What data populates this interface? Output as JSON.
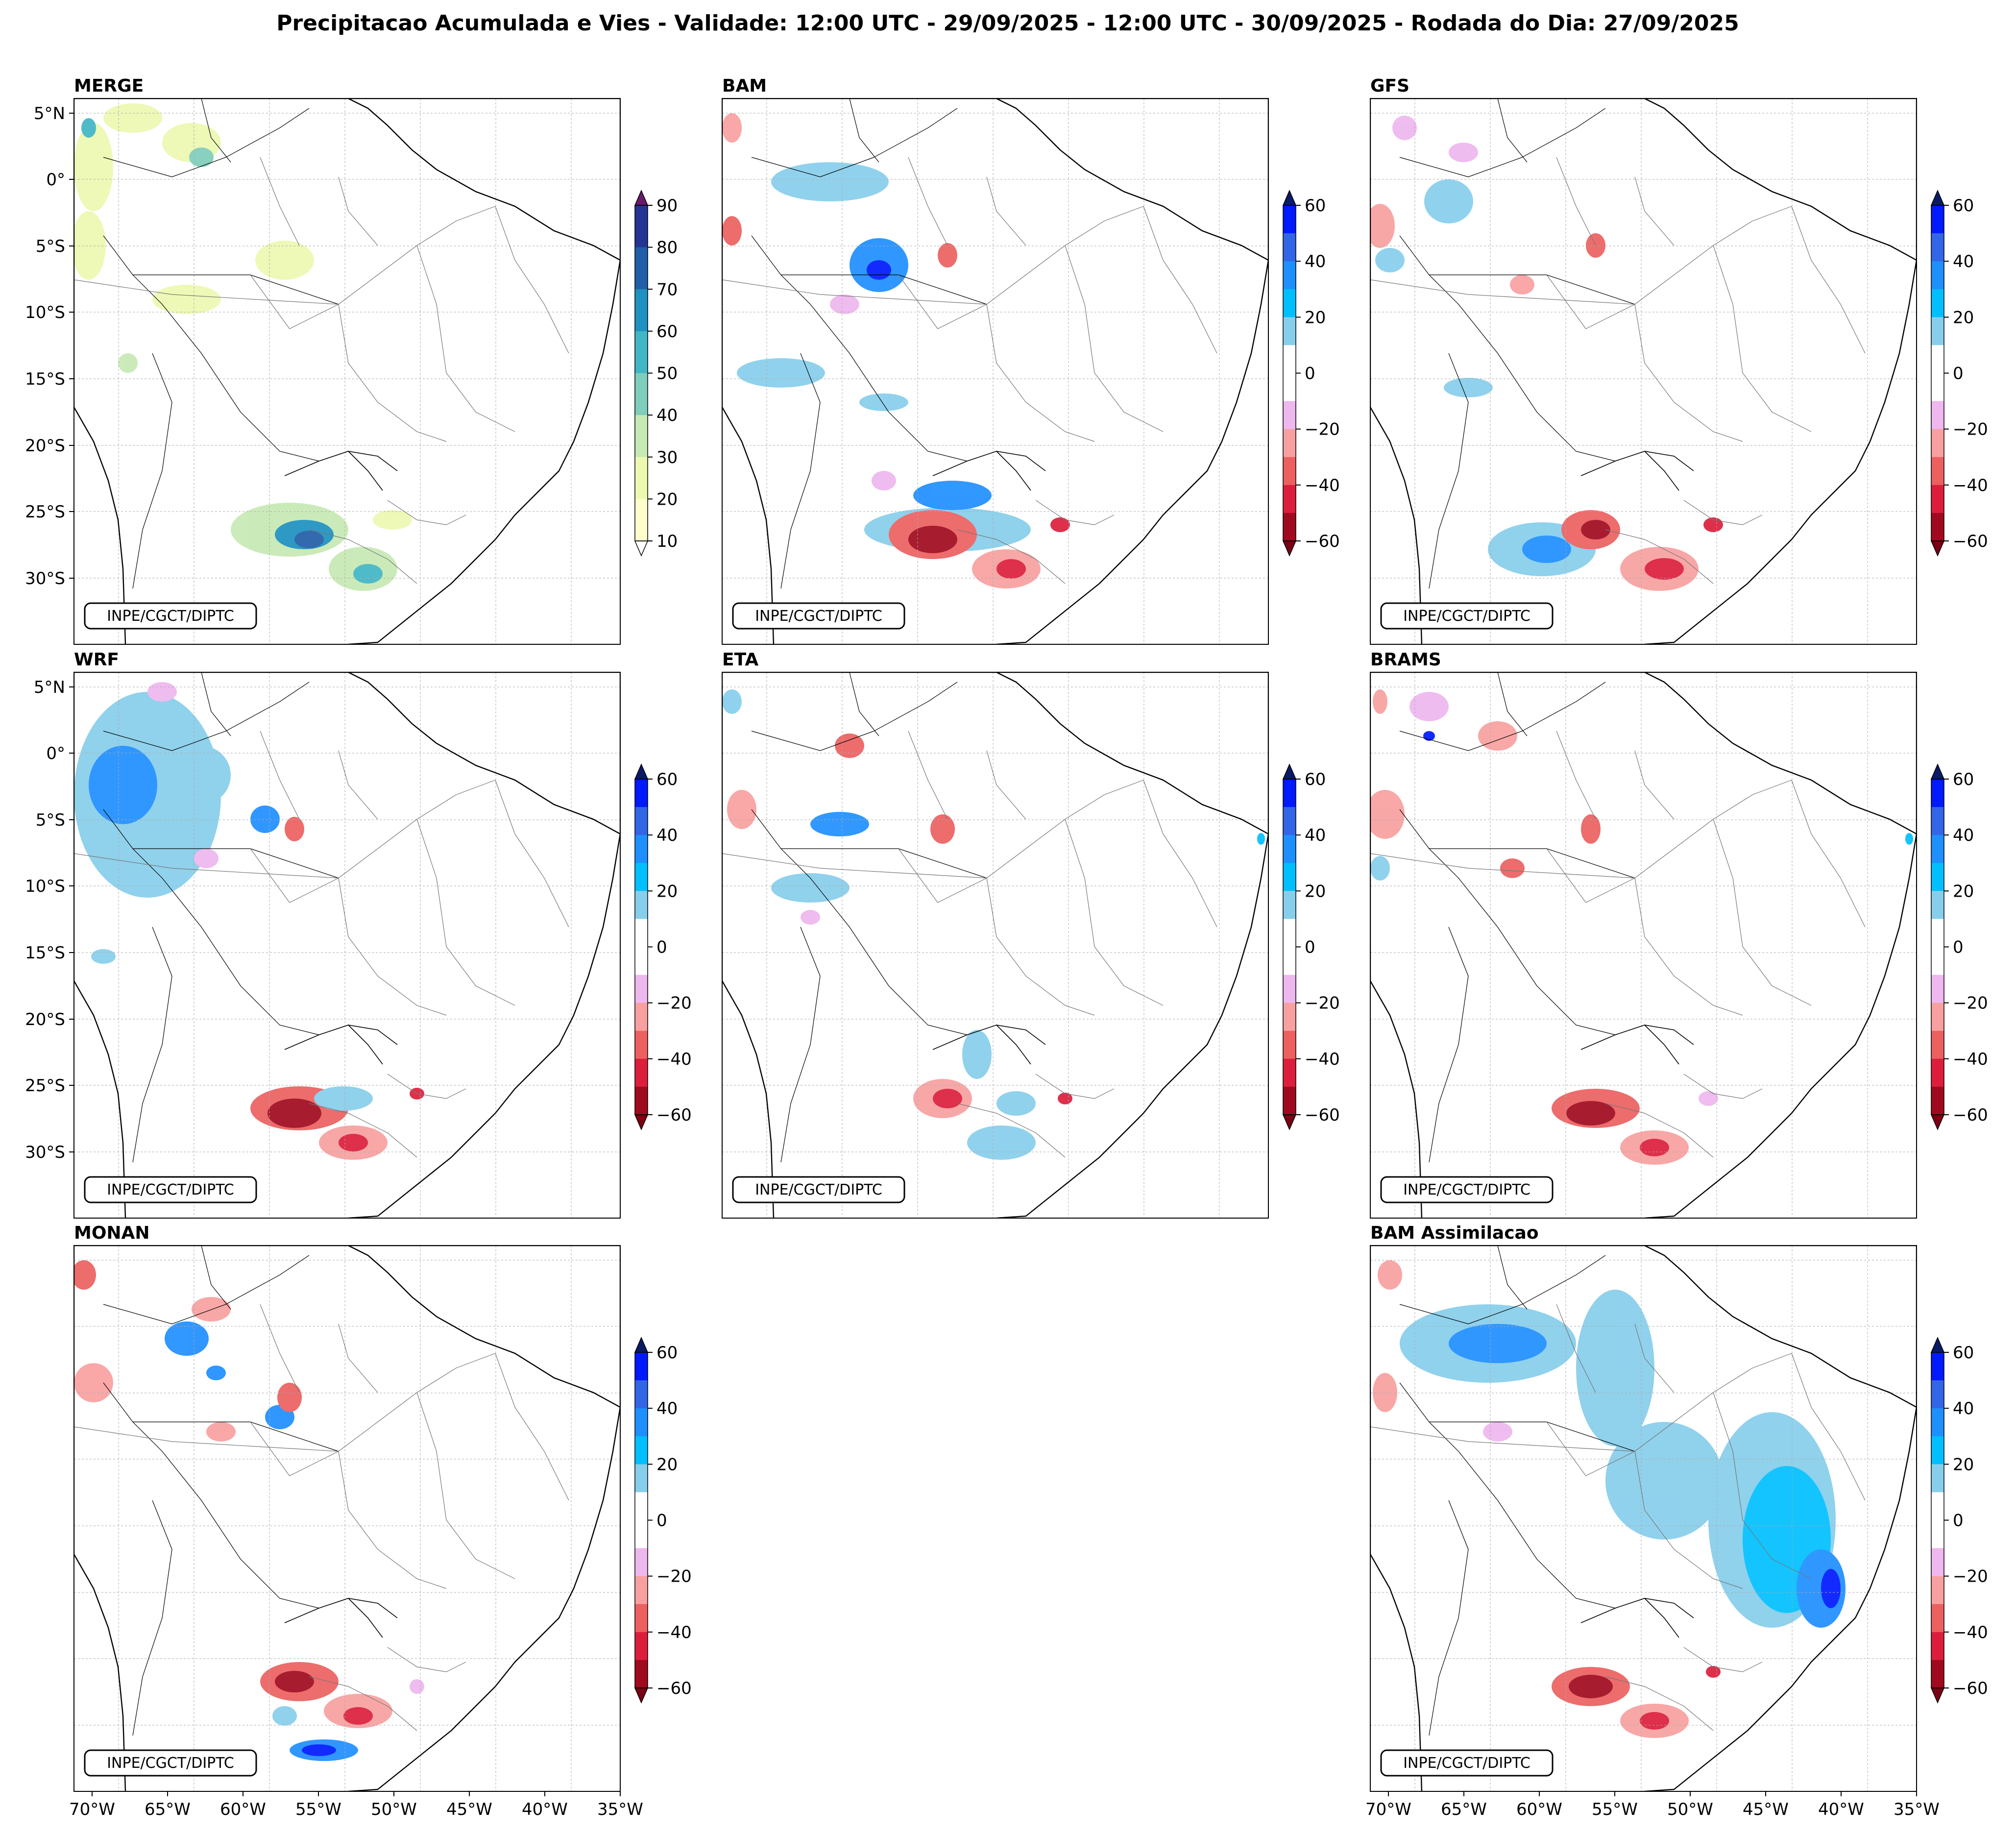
{
  "title": "Precipitacao Acumulada e Vies - Validade: 12:00 UTC - 29/09/2025 - 12:00 UTC - 30/09/2025 - Rodada do Dia: 27/09/2025",
  "credit": "INPE/CGCT/DIPTC",
  "lat_ticks": [
    "5°N",
    "0°",
    "5°S",
    "10°S",
    "15°S",
    "20°S",
    "25°S",
    "30°S"
  ],
  "lon_ticks": [
    "70°W",
    "65°W",
    "60°W",
    "55°W",
    "50°W",
    "45°W",
    "40°W",
    "35°W"
  ],
  "panels": [
    {
      "id": "merge",
      "label": "MERGE",
      "cbar": "merge"
    },
    {
      "id": "bam",
      "label": "BAM",
      "cbar": "bias"
    },
    {
      "id": "gfs",
      "label": "GFS",
      "cbar": "bias"
    },
    {
      "id": "wrf",
      "label": "WRF",
      "cbar": "bias"
    },
    {
      "id": "eta",
      "label": "ETA",
      "cbar": "bias"
    },
    {
      "id": "brams",
      "label": "BRAMS",
      "cbar": "bias"
    },
    {
      "id": "monan",
      "label": "MONAN",
      "cbar": "bias"
    },
    {
      "id": "bam_assim",
      "label": "BAM Assimilacao",
      "cbar": "bias"
    }
  ],
  "colorbars": {
    "merge": {
      "ticks": [
        "10",
        "20",
        "30",
        "40",
        "50",
        "60",
        "70",
        "80",
        "90"
      ],
      "colors": [
        "#ffffcc",
        "#edf8b1",
        "#c7e9b4",
        "#7fcdbb",
        "#41b6c4",
        "#1d91c0",
        "#225ea8",
        "#253494",
        "#081d58"
      ],
      "over": "#6a1a6a",
      "under": "#ffffff"
    },
    "bias": {
      "ticks": [
        "60",
        "40",
        "20",
        "0",
        "−20",
        "−40",
        "−60"
      ],
      "colors_top_down": [
        "#0019ff",
        "#3366e6",
        "#1e8fff",
        "#00bfff",
        "#87ceeb",
        "#ffffff",
        "#ffffff",
        "#eeb7ee",
        "#f8a0a0",
        "#ec6060",
        "#dc1e3c",
        "#a00a1e"
      ],
      "over": "#0a1a66",
      "under": "#7a0014"
    }
  }
}
